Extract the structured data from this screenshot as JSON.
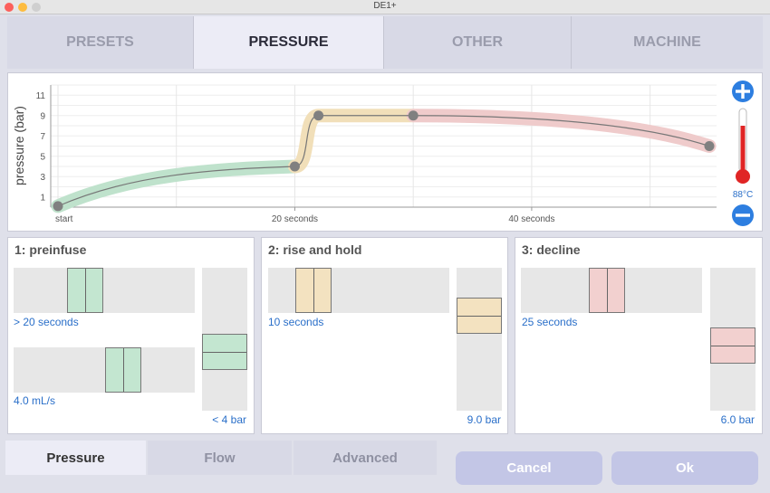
{
  "window": {
    "title": "DE1+"
  },
  "tabs": [
    {
      "label": "PRESETS",
      "active": false
    },
    {
      "label": "PRESSURE",
      "active": true
    },
    {
      "label": "OTHER",
      "active": false
    },
    {
      "label": "MACHINE",
      "active": false
    }
  ],
  "chart": {
    "ylabel": "pressure (bar)",
    "yticks": [
      "1",
      "3",
      "5",
      "7",
      "9",
      "11"
    ],
    "xticks": [
      "start",
      "20 seconds",
      "40 seconds"
    ],
    "temperature": "88°C"
  },
  "chart_data": {
    "type": "line",
    "ylabel": "pressure (bar)",
    "xticks": [
      "start",
      "20 seconds",
      "40 seconds"
    ],
    "ylim": [
      0,
      12
    ],
    "xlim": [
      0,
      55
    ],
    "points": [
      {
        "x": 0,
        "y": 0.1
      },
      {
        "x": 20,
        "y": 4.0
      },
      {
        "x": 22,
        "y": 9.0
      },
      {
        "x": 30,
        "y": 9.0
      },
      {
        "x": 55,
        "y": 6.0
      }
    ],
    "segments": [
      {
        "name": "preinfuse",
        "color": "#bfe2cc"
      },
      {
        "name": "rise and hold",
        "color": "#f1dfb9"
      },
      {
        "name": "decline",
        "color": "#efcbcb"
      }
    ]
  },
  "steps": [
    {
      "title": "1: preinfuse",
      "time": "> 20 seconds",
      "flow": "4.0 mL/s",
      "pressure": "< 4 bar",
      "color": "#c3e6d0",
      "time_frac": 0.37,
      "flow_frac": 0.63,
      "pressure_frac": 0.38
    },
    {
      "title": "2: rise and hold",
      "time": "10 seconds",
      "pressure": "9.0 bar",
      "color": "#f3e2c0",
      "time_frac": 0.19,
      "pressure_frac": 0.72
    },
    {
      "title": "3: decline",
      "time": "25 seconds",
      "pressure": "6.0 bar",
      "color": "#f2d0cf",
      "time_frac": 0.47,
      "pressure_frac": 0.44
    }
  ],
  "bottom_tabs": [
    {
      "label": "Pressure",
      "active": true
    },
    {
      "label": "Flow",
      "active": false
    },
    {
      "label": "Advanced",
      "active": false
    }
  ],
  "buttons": {
    "cancel": "Cancel",
    "ok": "Ok"
  }
}
